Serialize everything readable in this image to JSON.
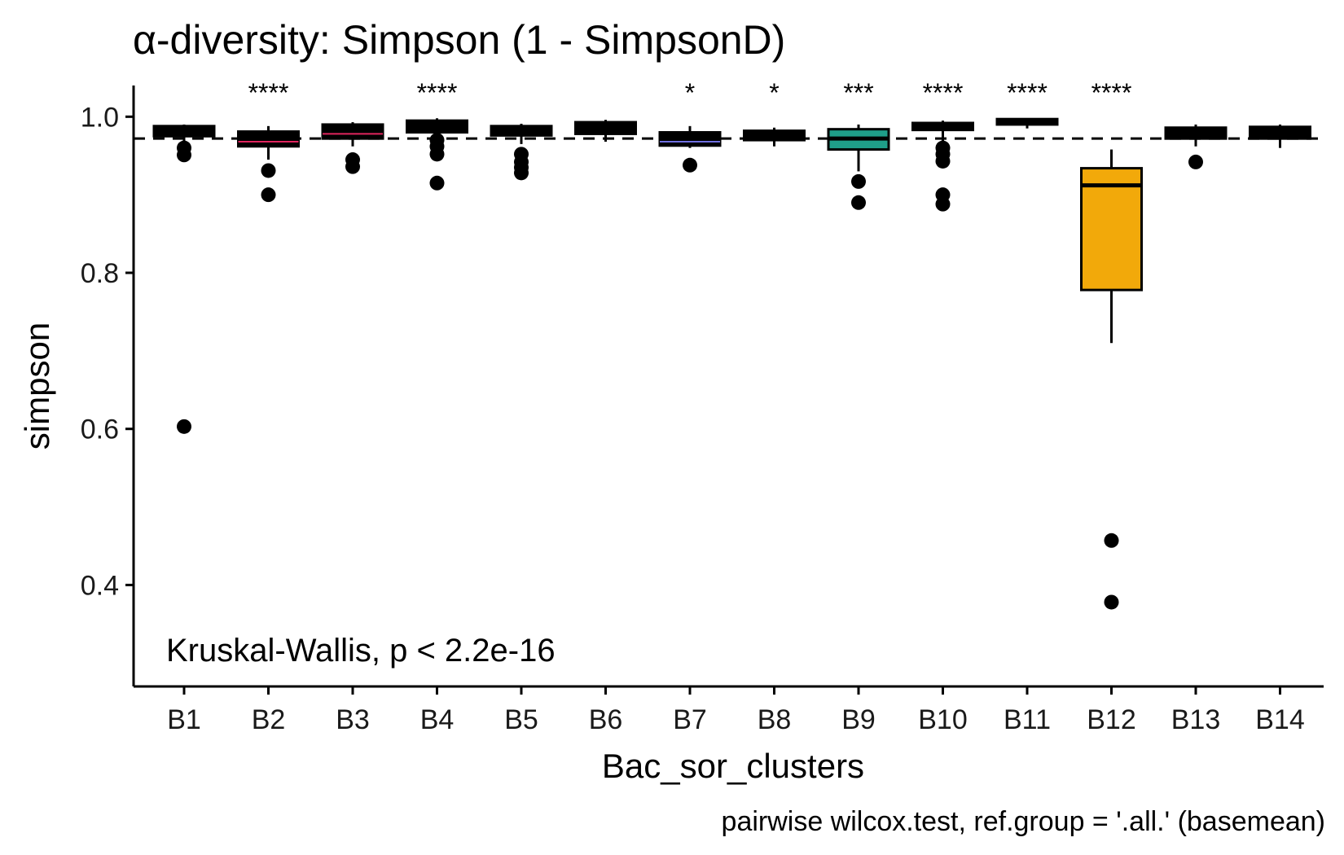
{
  "chart_data": {
    "type": "boxplot",
    "title": "α-diversity: Simpson (1 - SimpsonD)",
    "xlabel": "Bac_sor_clusters",
    "ylabel": "simpson",
    "ylim": [
      0.27,
      1.04
    ],
    "yticks": [
      0.4,
      0.6,
      0.8,
      1.0
    ],
    "ytick_labels": [
      "0.4",
      "0.6",
      "0.8",
      "1.0"
    ],
    "reference_line": 0.972,
    "annotation": "Kruskal-Wallis, p < 2.2e-16",
    "caption": "pairwise wilcox.test, ref.group = '.all.' (basemean)",
    "groups": [
      {
        "name": "B1",
        "q1": 0.975,
        "median": 0.984,
        "q3": 0.988,
        "whisker_low": 0.968,
        "whisker_high": 0.99,
        "outliers": [
          0.96,
          0.951,
          0.603
        ],
        "fill": "#000000",
        "median_color": "#000000",
        "significance": ""
      },
      {
        "name": "B2",
        "q1": 0.962,
        "median": 0.968,
        "q3": 0.981,
        "whisker_low": 0.945,
        "whisker_high": 0.988,
        "outliers": [
          0.931,
          0.9
        ],
        "fill": "#000000",
        "median_color": "#e0245e",
        "significance": "****"
      },
      {
        "name": "B3",
        "q1": 0.972,
        "median": 0.978,
        "q3": 0.99,
        "whisker_low": 0.962,
        "whisker_high": 0.993,
        "outliers": [
          0.945,
          0.936
        ],
        "fill": "#000000",
        "median_color": "#e0245e",
        "significance": ""
      },
      {
        "name": "B4",
        "q1": 0.98,
        "median": 0.99,
        "q3": 0.995,
        "whisker_low": 0.975,
        "whisker_high": 0.998,
        "outliers": [
          0.97,
          0.962,
          0.952,
          0.915
        ],
        "fill": "#000000",
        "median_color": "#000000",
        "significance": "****"
      },
      {
        "name": "B5",
        "q1": 0.976,
        "median": 0.982,
        "q3": 0.988,
        "whisker_low": 0.965,
        "whisker_high": 0.991,
        "outliers": [
          0.952,
          0.942,
          0.935,
          0.928
        ],
        "fill": "#000000",
        "median_color": "#000000",
        "significance": ""
      },
      {
        "name": "B6",
        "q1": 0.978,
        "median": 0.986,
        "q3": 0.993,
        "whisker_low": 0.968,
        "whisker_high": 0.996,
        "outliers": [],
        "fill": "#000000",
        "median_color": "#000000",
        "significance": ""
      },
      {
        "name": "B7",
        "q1": 0.963,
        "median": 0.968,
        "q3": 0.98,
        "whisker_low": 0.96,
        "whisker_high": 0.988,
        "outliers": [
          0.938
        ],
        "fill": "#000000",
        "median_color": "#6f6fe0",
        "significance": "*"
      },
      {
        "name": "B8",
        "q1": 0.97,
        "median": 0.976,
        "q3": 0.982,
        "whisker_low": 0.962,
        "whisker_high": 0.986,
        "outliers": [],
        "fill": "#000000",
        "median_color": "#000000",
        "significance": "*"
      },
      {
        "name": "B9",
        "q1": 0.958,
        "median": 0.972,
        "q3": 0.984,
        "whisker_low": 0.93,
        "whisker_high": 0.99,
        "outliers": [
          0.917,
          0.89
        ],
        "fill": "#1f9e89",
        "median_color": "#000000",
        "significance": "***"
      },
      {
        "name": "B10",
        "q1": 0.983,
        "median": 0.988,
        "q3": 0.992,
        "whisker_low": 0.968,
        "whisker_high": 0.995,
        "outliers": [
          0.96,
          0.952,
          0.943,
          0.9,
          0.888
        ],
        "fill": "#000000",
        "median_color": "#000000",
        "significance": "****"
      },
      {
        "name": "B11",
        "q1": 0.99,
        "median": 0.994,
        "q3": 0.997,
        "whisker_low": 0.985,
        "whisker_high": 0.998,
        "outliers": [],
        "fill": "#000000",
        "median_color": "#000000",
        "significance": "****"
      },
      {
        "name": "B12",
        "q1": 0.778,
        "median": 0.912,
        "q3": 0.934,
        "whisker_low": 0.71,
        "whisker_high": 0.958,
        "outliers": [
          0.457,
          0.378
        ],
        "fill": "#f2a90a",
        "median_color": "#000000",
        "significance": "****"
      },
      {
        "name": "B13",
        "q1": 0.972,
        "median": 0.979,
        "q3": 0.986,
        "whisker_low": 0.962,
        "whisker_high": 0.99,
        "outliers": [
          0.942
        ],
        "fill": "#000000",
        "median_color": "#000000",
        "significance": ""
      },
      {
        "name": "B14",
        "q1": 0.972,
        "median": 0.98,
        "q3": 0.987,
        "whisker_low": 0.96,
        "whisker_high": 0.99,
        "outliers": [],
        "fill": "#000000",
        "median_color": "#000000",
        "significance": ""
      }
    ]
  }
}
